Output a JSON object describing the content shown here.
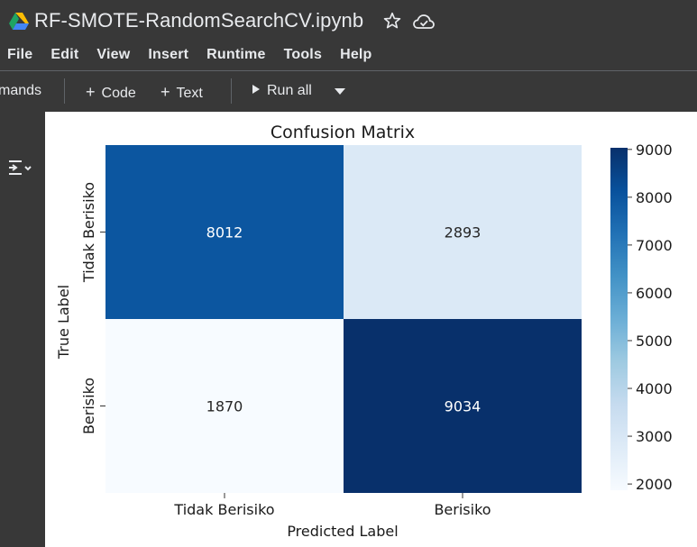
{
  "titlebar": {
    "title": "RF-SMOTE-RandomSearchCV.ipynb",
    "icons": [
      "google-drive-icon",
      "star-icon",
      "cloud-saved-icon"
    ]
  },
  "menu": {
    "items": [
      "File",
      "Edit",
      "View",
      "Insert",
      "Runtime",
      "Tools",
      "Help"
    ]
  },
  "toolbar": {
    "commands_label": "mands",
    "code_label": "Code",
    "text_label": "Text",
    "run_all_label": "Run all"
  },
  "colors": {
    "chrome_bg": "#383838",
    "chrome_text": "#e8eaed",
    "cell_dark": "#08306b",
    "cell_light": "#f7fbff"
  },
  "chart_data": {
    "type": "heatmap",
    "title": "Confusion Matrix",
    "xlabel": "Predicted Label",
    "ylabel": "True Label",
    "x_categories": [
      "Tidak Berisiko",
      "Berisiko"
    ],
    "y_categories": [
      "Tidak Berisiko",
      "Berisiko"
    ],
    "values": [
      [
        8012,
        2893
      ],
      [
        1870,
        9034
      ]
    ],
    "colormap": "Blues",
    "vmin": 1870,
    "vmax": 9034,
    "colorbar_ticks": [
      2000,
      3000,
      4000,
      5000,
      6000,
      7000,
      8000,
      9000
    ]
  }
}
